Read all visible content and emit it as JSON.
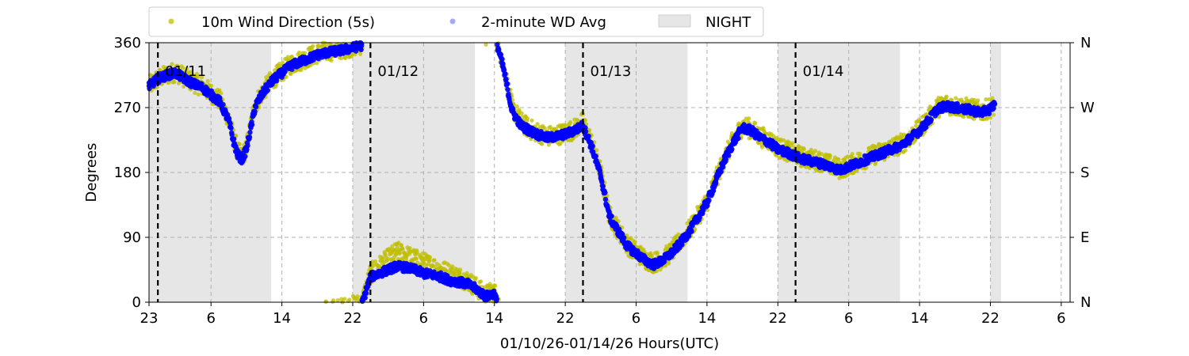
{
  "chart_data": {
    "type": "scatter",
    "title": "",
    "xlabel": "01/10/26-01/14/26  Hours(UTC)",
    "ylabel": "Degrees",
    "x_unit": "hours UTC",
    "x_start_label": "23",
    "xlim": [
      23,
      127
    ],
    "x_ticks": [
      {
        "x": 23,
        "label": "23"
      },
      {
        "x": 30,
        "label": "6"
      },
      {
        "x": 38,
        "label": "14"
      },
      {
        "x": 46,
        "label": "22"
      },
      {
        "x": 54,
        "label": "6"
      },
      {
        "x": 62,
        "label": "14"
      },
      {
        "x": 70,
        "label": "22"
      },
      {
        "x": 78,
        "label": "6"
      },
      {
        "x": 86,
        "label": "14"
      },
      {
        "x": 94,
        "label": "22"
      },
      {
        "x": 102,
        "label": "6"
      },
      {
        "x": 110,
        "label": "14"
      },
      {
        "x": 118,
        "label": "22"
      },
      {
        "x": 126,
        "label": "6"
      }
    ],
    "ylim": [
      0,
      360
    ],
    "y_ticks": [
      0,
      90,
      180,
      270,
      360
    ],
    "y2_ticks": [
      {
        "y": 0,
        "label": "N"
      },
      {
        "y": 90,
        "label": "E"
      },
      {
        "y": 180,
        "label": "S"
      },
      {
        "y": 270,
        "label": "W"
      },
      {
        "y": 360,
        "label": "N"
      }
    ],
    "grid": true,
    "legend": {
      "placement": "top",
      "entries": [
        {
          "label": "10m Wind Direction (5s)",
          "color": "#bfbf00",
          "kind": "point"
        },
        {
          "label": "2-minute WD Avg",
          "color": "#0000ff",
          "kind": "point"
        },
        {
          "label": "NIGHT",
          "color": "#e6e6e6",
          "kind": "patch"
        }
      ]
    },
    "night_spans": [
      [
        23,
        36.8
      ],
      [
        46,
        59.8
      ],
      [
        70,
        83.8
      ],
      [
        94,
        107.8
      ],
      [
        118,
        119.2
      ]
    ],
    "day_markers": [
      {
        "x": 24,
        "label": "01/11"
      },
      {
        "x": 48,
        "label": "01/12"
      },
      {
        "x": 72,
        "label": "01/13"
      },
      {
        "x": 96,
        "label": "01/14"
      }
    ],
    "series": [
      {
        "name": "10m Wind Direction (5s)",
        "color": "#bfbf00",
        "x": [
          23,
          24,
          25,
          26,
          27,
          28,
          29,
          30,
          31,
          32,
          32.5,
          33,
          33.5,
          34,
          34.5,
          35,
          36,
          37,
          38,
          39,
          40,
          41,
          42,
          43,
          44,
          45,
          46,
          47,
          48,
          49,
          50,
          51,
          52,
          53,
          54,
          55,
          56,
          57,
          58,
          59,
          60,
          61,
          62,
          63,
          64,
          65,
          66,
          67,
          68,
          69,
          70,
          71,
          72,
          73,
          74,
          75,
          76,
          77,
          78,
          79,
          80,
          81,
          82,
          83,
          84,
          85,
          86,
          87,
          88,
          89,
          90,
          91,
          92,
          93,
          94,
          95,
          96,
          97,
          98,
          99,
          100,
          101,
          102,
          103,
          104,
          105,
          106,
          107,
          108,
          109,
          110,
          111,
          112,
          113,
          114,
          115,
          116,
          117,
          118,
          118.5
        ],
        "y": [
          300,
          310,
          315,
          320,
          312,
          305,
          300,
          290,
          280,
          255,
          230,
          210,
          200,
          215,
          245,
          275,
          295,
          310,
          320,
          330,
          335,
          340,
          345,
          348,
          350,
          352,
          355,
          358,
          40,
          50,
          60,
          70,
          65,
          60,
          55,
          50,
          45,
          40,
          35,
          30,
          20,
          10,
          15,
          330,
          270,
          250,
          240,
          235,
          230,
          232,
          235,
          240,
          250,
          220,
          180,
          120,
          100,
          80,
          70,
          60,
          55,
          60,
          70,
          85,
          100,
          120,
          140,
          170,
          200,
          225,
          245,
          240,
          230,
          225,
          215,
          210,
          205,
          200,
          198,
          195,
          190,
          185,
          190,
          195,
          200,
          205,
          210,
          215,
          220,
          230,
          240,
          255,
          270,
          275,
          272,
          270,
          268,
          265,
          270,
          272
        ],
        "noise_deg": 14
      },
      {
        "name": "2-minute WD Avg",
        "color": "#0000ff",
        "x": [
          23,
          24,
          25,
          26,
          27,
          28,
          29,
          30,
          31,
          32,
          32.5,
          33,
          33.5,
          34,
          34.5,
          35,
          36,
          37,
          38,
          39,
          40,
          41,
          42,
          43,
          44,
          45,
          46,
          47,
          48,
          49,
          50,
          51,
          52,
          53,
          54,
          55,
          56,
          57,
          58,
          59,
          60,
          61,
          62,
          63,
          64,
          65,
          66,
          67,
          68,
          69,
          70,
          71,
          72,
          73,
          74,
          75,
          76,
          77,
          78,
          79,
          80,
          81,
          82,
          83,
          84,
          85,
          86,
          87,
          88,
          89,
          90,
          91,
          92,
          93,
          94,
          95,
          96,
          97,
          98,
          99,
          100,
          101,
          102,
          103,
          104,
          105,
          106,
          107,
          108,
          109,
          110,
          111,
          112,
          113,
          114,
          115,
          116,
          117,
          118,
          118.5
        ],
        "y": [
          300,
          310,
          315,
          318,
          310,
          303,
          298,
          288,
          278,
          252,
          225,
          205,
          198,
          212,
          242,
          272,
          293,
          308,
          318,
          328,
          333,
          338,
          343,
          346,
          348,
          350,
          353,
          356,
          35,
          40,
          45,
          50,
          48,
          45,
          40,
          38,
          35,
          30,
          28,
          25,
          18,
          8,
          12,
          325,
          265,
          245,
          238,
          232,
          228,
          230,
          233,
          238,
          245,
          215,
          175,
          118,
          98,
          78,
          68,
          58,
          52,
          58,
          68,
          82,
          98,
          118,
          138,
          168,
          198,
          222,
          242,
          238,
          228,
          222,
          212,
          208,
          202,
          198,
          195,
          192,
          188,
          183,
          188,
          193,
          198,
          203,
          208,
          213,
          218,
          228,
          238,
          252,
          268,
          272,
          270,
          268,
          266,
          263,
          268,
          275
        ],
        "noise_deg": 6
      }
    ]
  }
}
